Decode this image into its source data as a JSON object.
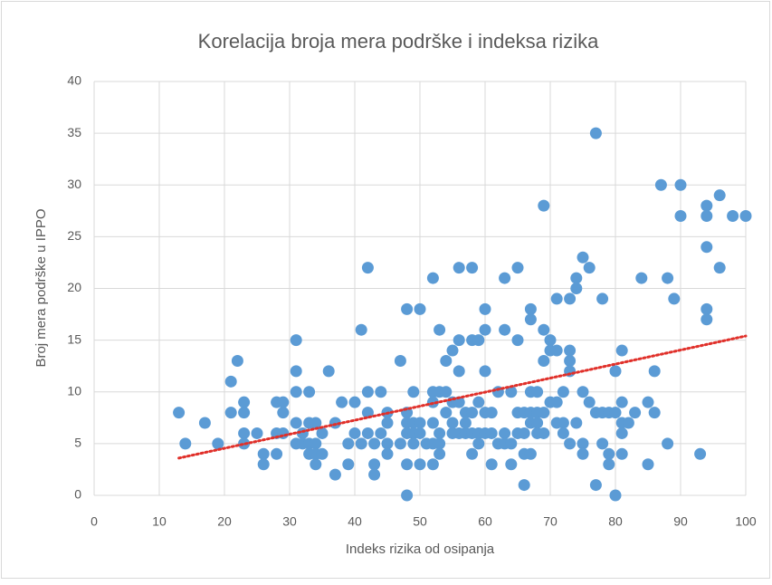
{
  "chart_data": {
    "type": "scatter",
    "title": "Korelacija broja mera podrške i indeksa rizika",
    "x_label": "Indeks rizika od osipanja",
    "y_label": "Broj mera podrške u IPPO",
    "color": "#5b9bd5",
    "grid": true,
    "xlim": [
      0,
      100
    ],
    "xticks": [
      0,
      10,
      20,
      30,
      40,
      50,
      60,
      70,
      80,
      90,
      100
    ],
    "ylim": [
      0,
      40
    ],
    "yticks": [
      0,
      5,
      10,
      15,
      20,
      25,
      30,
      35,
      40
    ],
    "x": [
      13,
      14,
      17,
      19,
      21,
      21,
      22,
      23,
      23,
      23,
      23,
      25,
      26,
      26,
      28,
      28,
      28,
      29,
      29,
      29,
      31,
      31,
      31,
      31,
      31,
      32,
      32,
      33,
      33,
      33,
      33,
      34,
      34,
      34,
      34,
      35,
      35,
      36,
      37,
      37,
      38,
      39,
      39,
      40,
      40,
      41,
      41,
      42,
      42,
      42,
      42,
      43,
      43,
      43,
      44,
      44,
      45,
      45,
      45,
      45,
      47,
      47,
      48,
      48,
      48,
      48,
      48,
      48,
      49,
      49,
      49,
      49,
      50,
      50,
      50,
      50,
      51,
      52,
      52,
      52,
      52,
      52,
      52,
      53,
      53,
      53,
      53,
      53,
      54,
      54,
      54,
      55,
      55,
      55,
      55,
      56,
      56,
      56,
      56,
      56,
      57,
      57,
      57,
      58,
      58,
      58,
      58,
      58,
      59,
      59,
      59,
      59,
      60,
      60,
      60,
      60,
      60,
      61,
      61,
      61,
      62,
      62,
      63,
      63,
      63,
      63,
      64,
      64,
      64,
      65,
      65,
      65,
      65,
      66,
      66,
      66,
      66,
      67,
      67,
      67,
      67,
      67,
      67,
      68,
      68,
      68,
      68,
      69,
      69,
      69,
      69,
      69,
      70,
      70,
      70,
      71,
      71,
      71,
      71,
      72,
      72,
      72,
      73,
      73,
      73,
      73,
      73,
      74,
      74,
      74,
      75,
      75,
      75,
      75,
      76,
      76,
      77,
      77,
      77,
      78,
      78,
      78,
      79,
      79,
      79,
      80,
      80,
      80,
      81,
      81,
      81,
      81,
      81,
      82,
      83,
      84,
      85,
      85,
      86,
      86,
      87,
      88,
      88,
      89,
      90,
      90,
      93,
      94,
      94,
      94,
      94,
      94,
      96,
      96,
      98,
      100
    ],
    "values": [
      8,
      5,
      7,
      5,
      11,
      8,
      13,
      9,
      8,
      6,
      5,
      6,
      4,
      3,
      9,
      6,
      4,
      9,
      8,
      6,
      15,
      12,
      10,
      7,
      5,
      6,
      5,
      10,
      7,
      5,
      4,
      7,
      5,
      4,
      3,
      6,
      4,
      12,
      7,
      2,
      9,
      5,
      3,
      9,
      6,
      16,
      5,
      22,
      10,
      8,
      6,
      5,
      3,
      2,
      10,
      6,
      8,
      7,
      5,
      4,
      13,
      5,
      18,
      8,
      7,
      6,
      3,
      0,
      10,
      7,
      6,
      5,
      18,
      7,
      6,
      3,
      5,
      21,
      10,
      9,
      7,
      5,
      3,
      16,
      10,
      6,
      5,
      4,
      13,
      10,
      8,
      14,
      9,
      7,
      6,
      22,
      15,
      12,
      9,
      6,
      8,
      7,
      6,
      22,
      15,
      8,
      6,
      4,
      15,
      9,
      6,
      5,
      18,
      16,
      12,
      8,
      6,
      8,
      6,
      3,
      10,
      5,
      21,
      16,
      6,
      5,
      10,
      5,
      3,
      22,
      15,
      8,
      6,
      8,
      6,
      4,
      1,
      18,
      17,
      10,
      8,
      7,
      4,
      10,
      8,
      7,
      6,
      28,
      16,
      13,
      8,
      6,
      15,
      14,
      9,
      19,
      14,
      9,
      7,
      10,
      7,
      6,
      19,
      14,
      13,
      12,
      5,
      21,
      20,
      7,
      23,
      10,
      5,
      4,
      22,
      9,
      35,
      8,
      1,
      19,
      8,
      5,
      8,
      4,
      3,
      12,
      8,
      0,
      14,
      9,
      7,
      6,
      4,
      7,
      8,
      21,
      9,
      3,
      12,
      8,
      30,
      21,
      5,
      19,
      30,
      27,
      4,
      28,
      27,
      24,
      18,
      17,
      29,
      22,
      27,
      27
    ],
    "trendline": {
      "color": "#e0302a",
      "x": [
        13,
        100
      ],
      "y": [
        3.6,
        15.4
      ]
    }
  }
}
